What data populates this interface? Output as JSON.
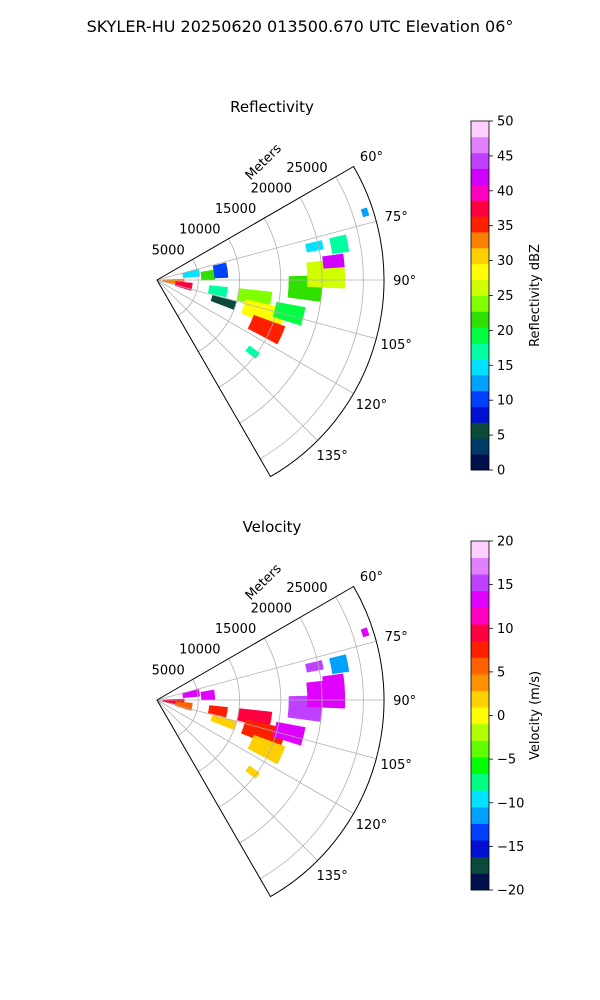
{
  "figure": {
    "title": "SKYLER-HU  20250620  013500.670 UTC Elevation 06°"
  },
  "chart_data": [
    {
      "type": "heatmap",
      "projection": "polar-sector",
      "title": "Reflectivity",
      "radial_axis_label": "Meters",
      "radial_ticks": [
        5000,
        10000,
        15000,
        20000,
        25000
      ],
      "radial_range": [
        0,
        27500
      ],
      "azimuth_range_deg": [
        60,
        150
      ],
      "azimuth_ticks": [
        "60°",
        "75°",
        "90°",
        "105°",
        "120°",
        "135°"
      ],
      "grid": true,
      "colorbar": {
        "label": "Reflectivity dBZ",
        "range": [
          0,
          50
        ],
        "ticks": [
          0,
          5,
          10,
          15,
          20,
          25,
          30,
          35,
          40,
          45,
          50
        ],
        "colors": [
          "#00104a",
          "#003a66",
          "#0a4a3a",
          "#0010d0",
          "#0040ff",
          "#00a0ff",
          "#00e0ff",
          "#00ffa0",
          "#00ff40",
          "#30e000",
          "#80ff00",
          "#d0ff00",
          "#ffff00",
          "#ffd000",
          "#ff8000",
          "#ff2000",
          "#ff0040",
          "#ff00c0",
          "#d000ff",
          "#c040ff",
          "#e080ff",
          "#ffd0ff"
        ]
      },
      "echoes": [
        {
          "r": 2000,
          "az": 95,
          "dr": 2600,
          "daz": 14,
          "v": 33
        },
        {
          "r": 3300,
          "az": 101,
          "dr": 2000,
          "daz": 12,
          "v": 38
        },
        {
          "r": 4200,
          "az": 80,
          "dr": 2000,
          "daz": 10,
          "v": 15
        },
        {
          "r": 6200,
          "az": 85,
          "dr": 1600,
          "daz": 10,
          "v": 22
        },
        {
          "r": 7800,
          "az": 82,
          "dr": 1600,
          "daz": 12,
          "v": 10
        },
        {
          "r": 7500,
          "az": 100,
          "dr": 2200,
          "daz": 8,
          "v": 18
        },
        {
          "r": 8500,
          "az": 108,
          "dr": 3000,
          "daz": 6,
          "v": 5
        },
        {
          "r": 12000,
          "az": 100,
          "dr": 4000,
          "daz": 8,
          "v": 24
        },
        {
          "r": 13500,
          "az": 107,
          "dr": 5000,
          "daz": 9,
          "v": 29
        },
        {
          "r": 14500,
          "az": 114,
          "dr": 4000,
          "daz": 8,
          "v": 36
        },
        {
          "r": 16500,
          "az": 104,
          "dr": 3500,
          "daz": 7,
          "v": 20
        },
        {
          "r": 18000,
          "az": 93,
          "dr": 4000,
          "daz": 9,
          "v": 22
        },
        {
          "r": 20500,
          "az": 88,
          "dr": 4500,
          "daz": 9,
          "v": 27
        },
        {
          "r": 21500,
          "az": 84,
          "dr": 2500,
          "daz": 4,
          "v": 41
        },
        {
          "r": 22500,
          "az": 79,
          "dr": 2000,
          "daz": 5,
          "v": 17
        },
        {
          "r": 19500,
          "az": 78,
          "dr": 2000,
          "daz": 3,
          "v": 15
        },
        {
          "r": 14500,
          "az": 127,
          "dr": 1500,
          "daz": 3,
          "v": 17
        },
        {
          "r": 26500,
          "az": 72,
          "dr": 700,
          "daz": 2,
          "v": 13
        }
      ]
    },
    {
      "type": "heatmap",
      "projection": "polar-sector",
      "title": "Velocity",
      "radial_axis_label": "Meters",
      "radial_ticks": [
        5000,
        10000,
        15000,
        20000,
        25000
      ],
      "radial_range": [
        0,
        27500
      ],
      "azimuth_range_deg": [
        60,
        150
      ],
      "azimuth_ticks": [
        "60°",
        "75°",
        "90°",
        "105°",
        "120°",
        "135°"
      ],
      "grid": true,
      "colorbar": {
        "label": "Velocity (m/s)",
        "range": [
          -20,
          20
        ],
        "ticks": [
          -20,
          -15,
          -10,
          -5,
          0,
          5,
          10,
          15,
          20
        ],
        "colors": [
          "#00104a",
          "#0a4a3a",
          "#0010d0",
          "#0040ff",
          "#00a0ff",
          "#00e0ff",
          "#00ff80",
          "#00ff00",
          "#60ff00",
          "#b0ff00",
          "#ffff00",
          "#ffd000",
          "#ff9000",
          "#ff6000",
          "#ff2000",
          "#ff0040",
          "#ff00c0",
          "#e000ff",
          "#c040ff",
          "#e080ff",
          "#ffd0ff"
        ]
      },
      "echoes": [
        {
          "r": 2000,
          "az": 95,
          "dr": 2600,
          "daz": 14,
          "v": 9
        },
        {
          "r": 3300,
          "az": 101,
          "dr": 2000,
          "daz": 12,
          "v": 6
        },
        {
          "r": 4200,
          "az": 80,
          "dr": 2000,
          "daz": 10,
          "v": 13
        },
        {
          "r": 6200,
          "az": 85,
          "dr": 1600,
          "daz": 10,
          "v": 14
        },
        {
          "r": 7500,
          "az": 100,
          "dr": 2200,
          "daz": 8,
          "v": 8
        },
        {
          "r": 8500,
          "az": 108,
          "dr": 3000,
          "daz": 6,
          "v": 1
        },
        {
          "r": 12000,
          "az": 100,
          "dr": 4000,
          "daz": 8,
          "v": 9
        },
        {
          "r": 13500,
          "az": 107,
          "dr": 5000,
          "daz": 9,
          "v": 7
        },
        {
          "r": 14500,
          "az": 114,
          "dr": 4000,
          "daz": 8,
          "v": 2
        },
        {
          "r": 16500,
          "az": 104,
          "dr": 3500,
          "daz": 7,
          "v": 14
        },
        {
          "r": 18000,
          "az": 93,
          "dr": 4000,
          "daz": 9,
          "v": 15
        },
        {
          "r": 20500,
          "az": 88,
          "dr": 4500,
          "daz": 9,
          "v": 14
        },
        {
          "r": 21500,
          "az": 84,
          "dr": 2500,
          "daz": 4,
          "v": 13
        },
        {
          "r": 22500,
          "az": 79,
          "dr": 2000,
          "daz": 5,
          "v": -11
        },
        {
          "r": 19500,
          "az": 78,
          "dr": 2000,
          "daz": 3,
          "v": 15
        },
        {
          "r": 14500,
          "az": 127,
          "dr": 1500,
          "daz": 3,
          "v": 1
        },
        {
          "r": 26500,
          "az": 72,
          "dr": 700,
          "daz": 2,
          "v": 13
        }
      ]
    }
  ]
}
